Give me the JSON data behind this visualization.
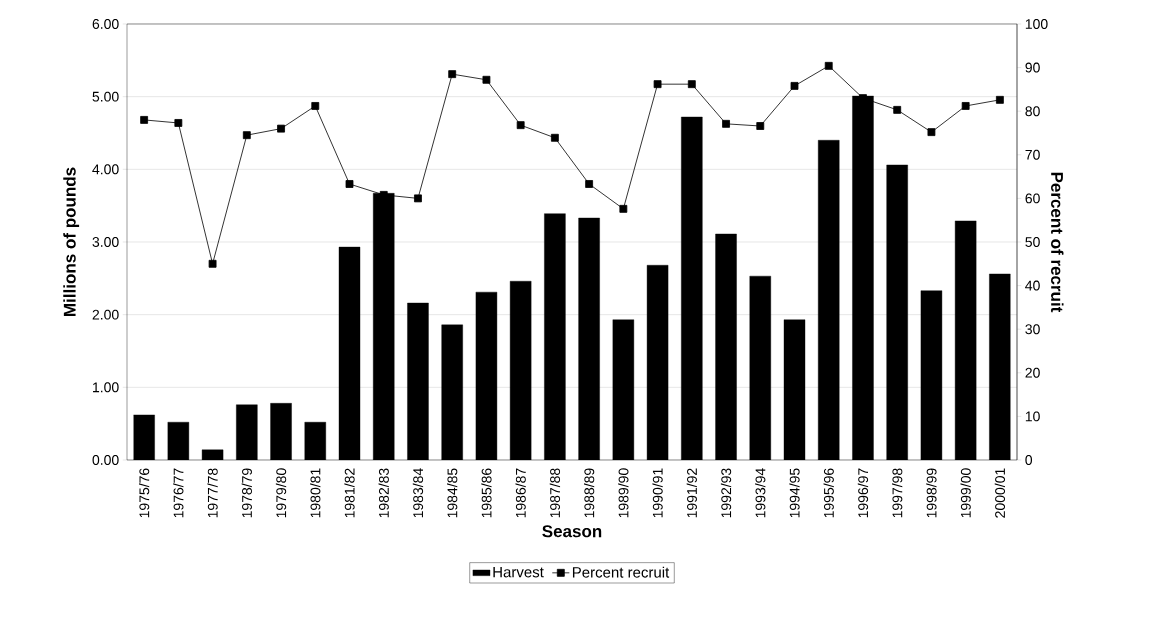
{
  "chart_data": {
    "type": "bar",
    "xlabel": "Season",
    "ylabel": "Millions of pounds",
    "y2label": "Percent of recruit",
    "categories": [
      "1975/76",
      "1976/77",
      "1977/78",
      "1978/79",
      "1979/80",
      "1980/81",
      "1981/82",
      "1982/83",
      "1983/84",
      "1984/85",
      "1985/86",
      "1986/87",
      "1987/88",
      "1988/89",
      "1989/90",
      "1990/91",
      "1991/92",
      "1992/93",
      "1993/94",
      "1994/95",
      "1995/96",
      "1996/97",
      "1997/98",
      "1998/99",
      "1999/00",
      "2000/01"
    ],
    "series": [
      {
        "name": "Harvest",
        "color": "#000000",
        "values": [
          0.62,
          0.52,
          0.14,
          0.76,
          0.78,
          0.52,
          2.93,
          3.67,
          2.16,
          1.86,
          2.31,
          2.46,
          3.39,
          3.33,
          1.93,
          2.68,
          4.72,
          3.11,
          2.53,
          1.93,
          4.4,
          5.01,
          4.06,
          2.33,
          3.29,
          2.56
        ]
      },
      {
        "name": "Percent recruit",
        "type": "line",
        "axis": "y2",
        "color": "#000000",
        "values": [
          78,
          77.3,
          45,
          74.5,
          76,
          81.2,
          63.3,
          60.8,
          60,
          88.5,
          87.2,
          76.8,
          73.9,
          63.3,
          57.6,
          86.2,
          86.2,
          77.1,
          76.6,
          85.8,
          90.4,
          83,
          80.3,
          75.2,
          81.2,
          82.6
        ]
      }
    ],
    "ylim": [
      0,
      6
    ],
    "yticks": [
      {
        "value": 0,
        "label": "0.00"
      },
      {
        "value": 1,
        "label": "1.00"
      },
      {
        "value": 2,
        "label": "2.00"
      },
      {
        "value": 3,
        "label": "3.00"
      },
      {
        "value": 4,
        "label": "4.00"
      },
      {
        "value": 5,
        "label": "5.00"
      },
      {
        "value": 6,
        "label": "6.00"
      }
    ],
    "y2lim": [
      0,
      100
    ],
    "y2ticks": [
      0,
      10,
      20,
      30,
      40,
      50,
      60,
      70,
      80,
      90,
      100
    ],
    "grid": "y",
    "legend": "bottom",
    "marker": "square"
  }
}
